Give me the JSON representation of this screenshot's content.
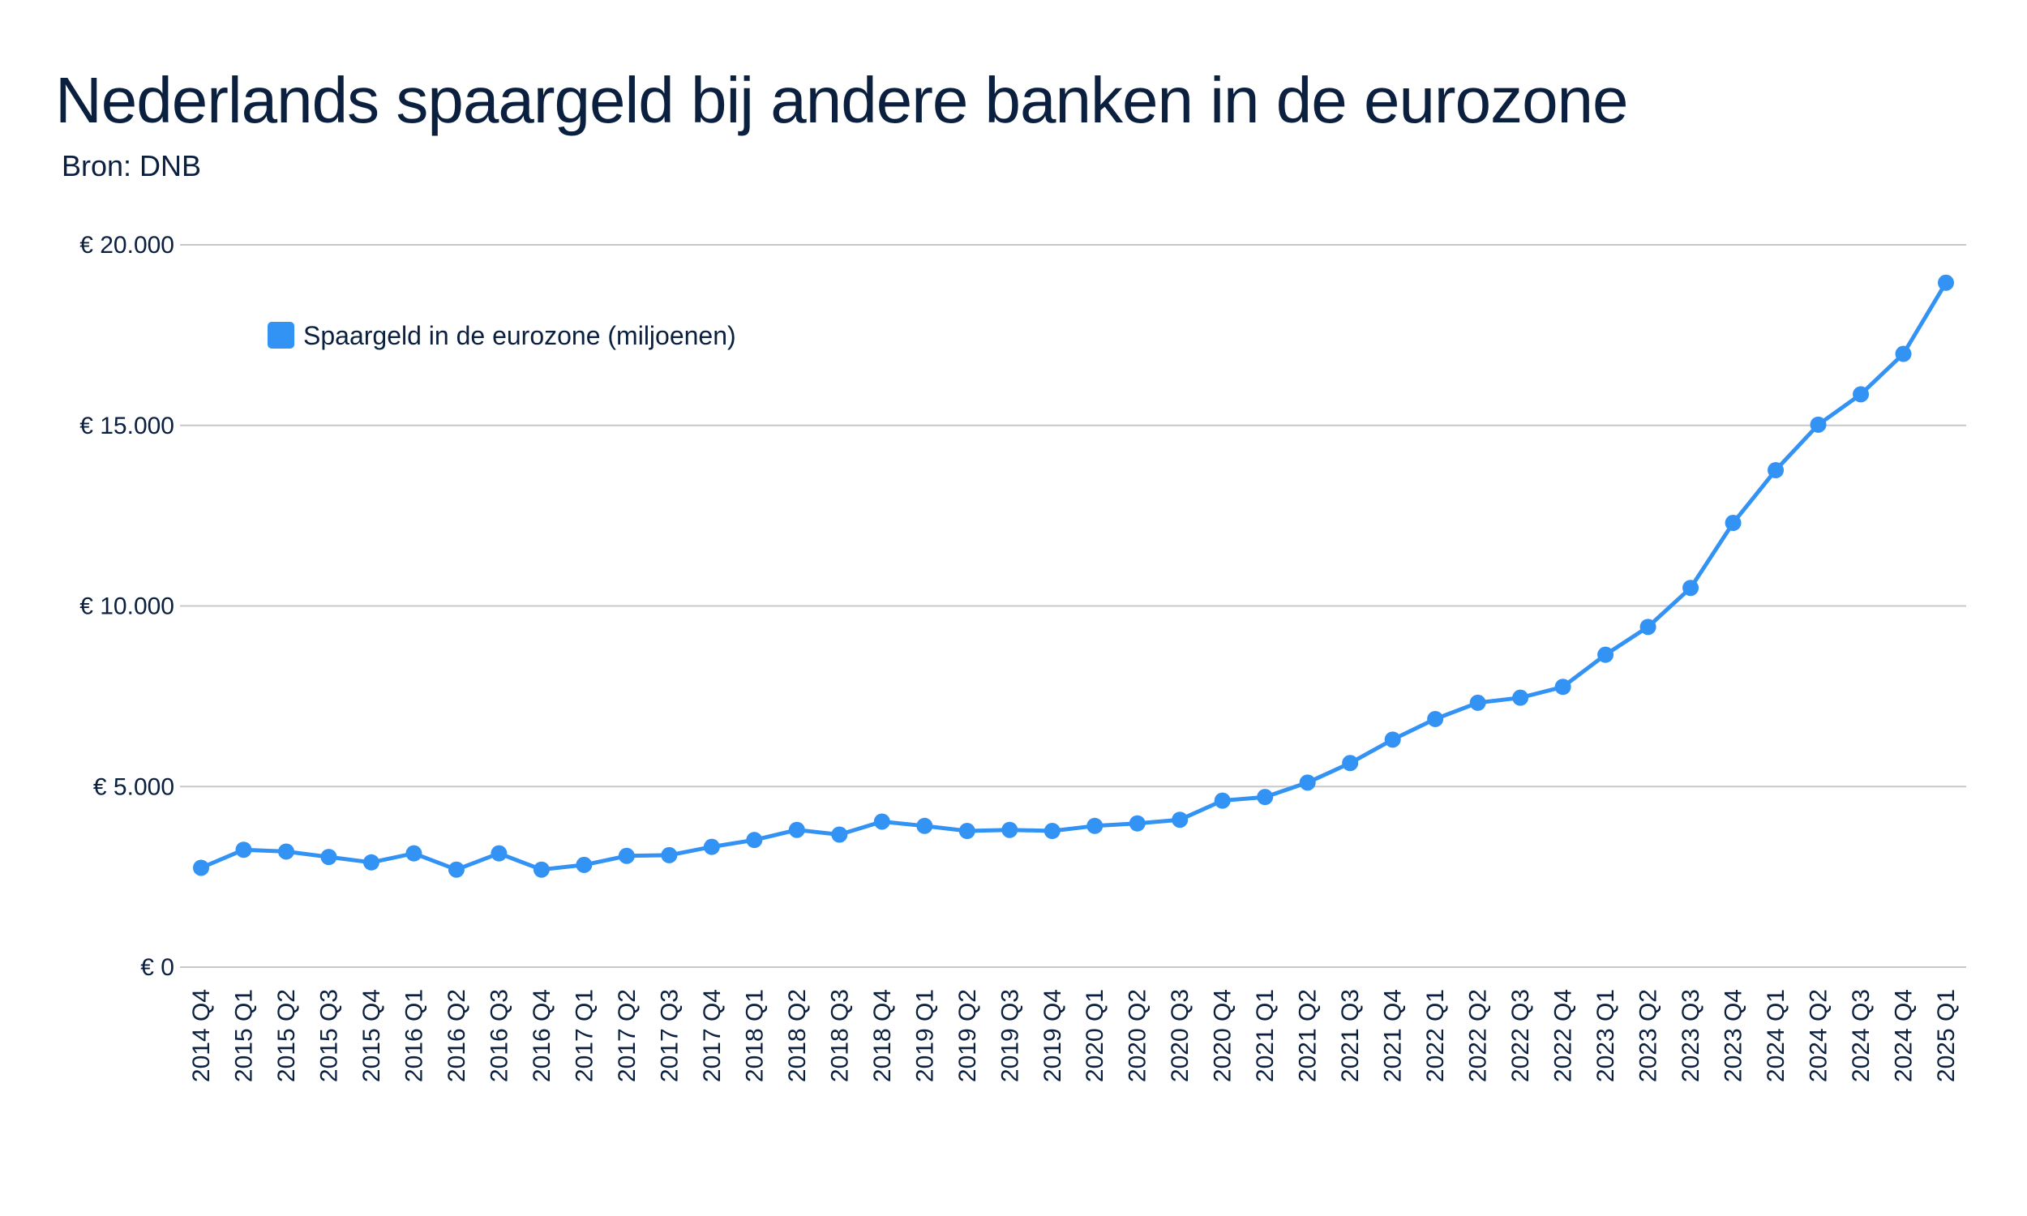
{
  "header": {
    "title": "Nederlands spaargeld bij andere banken in de eurozone",
    "subtitle": "Bron: DNB"
  },
  "colors": {
    "series": "#3393f5",
    "grid": "#c8c8c8",
    "text": "#0b1f3f"
  },
  "chart_data": {
    "type": "line",
    "title": "Nederlands spaargeld bij andere banken in de eurozone",
    "subtitle": "Bron: DNB",
    "xlabel": "",
    "ylabel": "",
    "ylim": [
      0,
      20000
    ],
    "y_ticks": [
      0,
      5000,
      10000,
      15000,
      20000
    ],
    "y_tick_labels": [
      "€ 0",
      "€ 5.000",
      "€ 10.000",
      "€ 15.000",
      "€ 20.000"
    ],
    "grid": true,
    "legend_position": "top-left",
    "categories": [
      "2014 Q4",
      "2015 Q1",
      "2015 Q2",
      "2015 Q3",
      "2015 Q4",
      "2016 Q1",
      "2016 Q2",
      "2016 Q3",
      "2016 Q4",
      "2017 Q1",
      "2017 Q2",
      "2017 Q3",
      "2017 Q4",
      "2018 Q1",
      "2018 Q2",
      "2018 Q3",
      "2018 Q4",
      "2019 Q1",
      "2019 Q2",
      "2019 Q3",
      "2019 Q4",
      "2020 Q1",
      "2020 Q2",
      "2020 Q3",
      "2020 Q4",
      "2021 Q1",
      "2021 Q2",
      "2021 Q3",
      "2021 Q4",
      "2022 Q1",
      "2022 Q2",
      "2022 Q3",
      "2022 Q4",
      "2023 Q1",
      "2023 Q2",
      "2023 Q3",
      "2023 Q4",
      "2024 Q1",
      "2024 Q2",
      "2024 Q3",
      "2024 Q4",
      "2025 Q1"
    ],
    "series": [
      {
        "name": "Spaargeld in de eurozone (miljoenen)",
        "color": "#3393f5",
        "values": [
          2750,
          3250,
          3200,
          3050,
          2900,
          3150,
          2700,
          3150,
          2700,
          2830,
          3080,
          3100,
          3330,
          3520,
          3800,
          3670,
          4030,
          3910,
          3770,
          3800,
          3770,
          3910,
          3980,
          4080,
          4610,
          4710,
          5110,
          5650,
          6300,
          6870,
          7320,
          7460,
          7760,
          8650,
          9420,
          10500,
          12300,
          13760,
          15020,
          15860,
          16980,
          18950
        ]
      }
    ]
  }
}
